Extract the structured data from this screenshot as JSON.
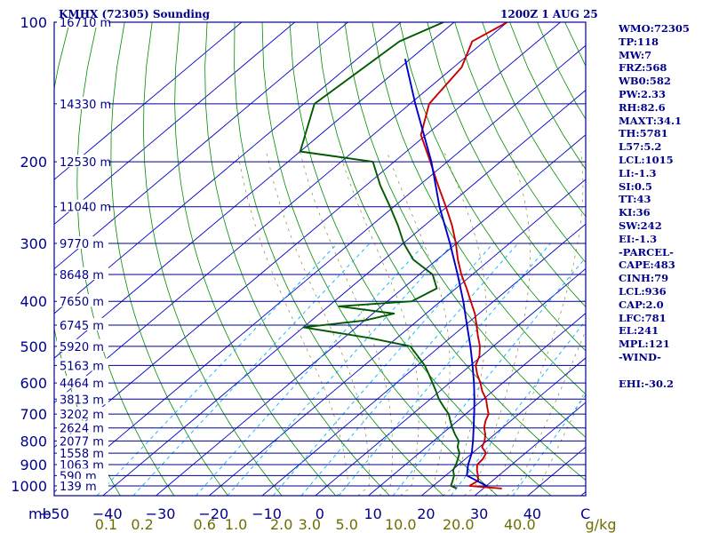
{
  "header": {
    "station": "KMHX (72305) Sounding",
    "valid": "1200Z  1 AUG 25"
  },
  "indices": [
    "WMO:72305",
    "TP:118",
    "MW:7",
    "FRZ:568",
    "WB0:582",
    "PW:2.33",
    "RH:82.6",
    "MAXT:34.1",
    "TH:5781",
    "L57:5.2",
    "LCL:1015",
    "LI:-1.3",
    "SI:0.5",
    "TT:43",
    "KI:36",
    "SW:242",
    "EI:-1.3",
    "-PARCEL-",
    "CAPE:483",
    "CINH:79",
    "LCL:936",
    "CAP:2.0",
    "LFC:781",
    "EL:241",
    "MPL:121",
    "-WIND-",
    "",
    "EHI:-30.2"
  ],
  "colors": {
    "isobar": "#00008b",
    "dry_adiabat": "#008c00",
    "isotherm": "#0000cd",
    "mixing_ratio": "#00b4ff",
    "temperature": "#c80000",
    "dewpoint": "#005a00",
    "parcel": "#0000c8",
    "text": "#00008b",
    "mr_labels": "#6e6e00",
    "moist_adiabat": "#6e6e00"
  },
  "chart_data": {
    "type": "line",
    "title": "KMHX (72305) Sounding",
    "subtitle": "1200Z  1 AUG 25",
    "xlabel": "",
    "ylabel": "mb",
    "y_scale": "log",
    "y_axis": "pressure (mb), decreasing upward",
    "x_axis": "temperature (C), skewed",
    "xlim": [
      -50,
      50
    ],
    "ylim": [
      1050,
      100
    ],
    "pressure_ticks": [
      100,
      200,
      300,
      400,
      500,
      600,
      700,
      800,
      900,
      1000
    ],
    "pressure_tick_labels": [
      "100",
      "200",
      "300",
      "400",
      "500",
      "600",
      "700",
      "800",
      "900",
      "1000"
    ],
    "temperature_ticks": [
      -50,
      -40,
      -30,
      -20,
      -10,
      0,
      10,
      20,
      30,
      40,
      50
    ],
    "temperature_tick_labels": [
      "−50",
      "−40",
      "−30",
      "−20",
      "−10",
      "0",
      "10",
      "20",
      "30",
      "40",
      "C"
    ],
    "mb_label": "mb",
    "mixing_ratio_ticks": [
      0.1,
      0.2,
      0.6,
      1.0,
      2.0,
      3.0,
      5.0,
      10.0,
      20.0,
      40.0
    ],
    "mixing_ratio_tick_labels": [
      "0.1",
      "0.2",
      "0.6",
      "1.0",
      "2.0",
      "3.0",
      "5.0",
      "10.0",
      "20.0",
      "40.0"
    ],
    "mixing_ratio_unit": "g/kg",
    "height_levels": [
      {
        "p": 100,
        "label": "16710 m"
      },
      {
        "p": 150,
        "label": "14330 m"
      },
      {
        "p": 200,
        "label": "12530 m"
      },
      {
        "p": 250,
        "label": "11040 m"
      },
      {
        "p": 300,
        "label": "9770 m"
      },
      {
        "p": 350,
        "label": "8648 m"
      },
      {
        "p": 400,
        "label": "7650 m"
      },
      {
        "p": 450,
        "label": "6745 m"
      },
      {
        "p": 500,
        "label": "5920 m"
      },
      {
        "p": 550,
        "label": "5163 m"
      },
      {
        "p": 600,
        "label": "4464 m"
      },
      {
        "p": 650,
        "label": "3813 m"
      },
      {
        "p": 700,
        "label": "3202 m"
      },
      {
        "p": 750,
        "label": "2624 m"
      },
      {
        "p": 800,
        "label": "2077 m"
      },
      {
        "p": 850,
        "label": "1558 m"
      },
      {
        "p": 900,
        "label": "1063 m"
      },
      {
        "p": 950,
        "label": "590 m"
      },
      {
        "p": 1000,
        "label": "139 m"
      }
    ],
    "series": [
      {
        "key": "temperature",
        "points": [
          [
            1013,
            33.5
          ],
          [
            1000,
            26.8
          ],
          [
            975,
            27.3
          ],
          [
            950,
            26.1
          ],
          [
            925,
            24.7
          ],
          [
            900,
            23.5
          ],
          [
            875,
            23.3
          ],
          [
            850,
            22.6
          ],
          [
            825,
            20.5
          ],
          [
            800,
            19.6
          ],
          [
            775,
            18.3
          ],
          [
            750,
            16.6
          ],
          [
            725,
            15.3
          ],
          [
            700,
            14.3
          ],
          [
            675,
            12.4
          ],
          [
            650,
            10.5
          ],
          [
            625,
            8.0
          ],
          [
            600,
            5.8
          ],
          [
            575,
            3.3
          ],
          [
            550,
            1.0
          ],
          [
            525,
            -0.4
          ],
          [
            500,
            -2.5
          ],
          [
            475,
            -5.2
          ],
          [
            450,
            -7.9
          ],
          [
            425,
            -10.8
          ],
          [
            400,
            -14.3
          ],
          [
            375,
            -18.0
          ],
          [
            350,
            -22.1
          ],
          [
            325,
            -26.1
          ],
          [
            300,
            -30.1
          ],
          [
            275,
            -34.7
          ],
          [
            250,
            -40.2
          ],
          [
            225,
            -46.4
          ],
          [
            200,
            -53.2
          ],
          [
            175,
            -61.0
          ],
          [
            150,
            -66.4
          ],
          [
            125,
            -68.5
          ],
          [
            110,
            -72.3
          ],
          [
            100,
            -70.0
          ]
        ]
      },
      {
        "key": "dewpoint",
        "points": [
          [
            1013,
            25.0
          ],
          [
            1000,
            23.3
          ],
          [
            975,
            22.5
          ],
          [
            950,
            21.6
          ],
          [
            925,
            20.2
          ],
          [
            900,
            19.5
          ],
          [
            875,
            18.6
          ],
          [
            850,
            17.6
          ],
          [
            825,
            15.9
          ],
          [
            800,
            14.7
          ],
          [
            775,
            12.6
          ],
          [
            750,
            10.6
          ],
          [
            725,
            8.7
          ],
          [
            700,
            6.8
          ],
          [
            675,
            4.2
          ],
          [
            650,
            1.6
          ],
          [
            625,
            -0.7
          ],
          [
            600,
            -3.2
          ],
          [
            575,
            -5.8
          ],
          [
            550,
            -8.6
          ],
          [
            525,
            -12.0
          ],
          [
            500,
            -15.6
          ],
          [
            480,
            -25.0
          ],
          [
            455,
            -40.0
          ],
          [
            440,
            -30.0
          ],
          [
            425,
            -26.0
          ],
          [
            410,
            -38.0
          ],
          [
            400,
            -25.4
          ],
          [
            375,
            -23.6
          ],
          [
            350,
            -27.5
          ],
          [
            325,
            -34.5
          ],
          [
            300,
            -39.9
          ],
          [
            275,
            -44.9
          ],
          [
            250,
            -50.7
          ],
          [
            225,
            -57.3
          ],
          [
            200,
            -64.0
          ],
          [
            190,
            -80.0
          ],
          [
            150,
            -88.0
          ],
          [
            110,
            -86.0
          ],
          [
            100,
            -82.0
          ]
        ]
      },
      {
        "key": "parcel",
        "points": [
          [
            1000,
            30.0
          ],
          [
            950,
            24.0
          ],
          [
            900,
            21.8
          ],
          [
            850,
            19.9
          ],
          [
            800,
            17.4
          ],
          [
            750,
            14.6
          ],
          [
            700,
            11.6
          ],
          [
            650,
            8.3
          ],
          [
            600,
            4.6
          ],
          [
            550,
            0.4
          ],
          [
            500,
            -4.3
          ],
          [
            450,
            -9.7
          ],
          [
            400,
            -15.7
          ],
          [
            350,
            -22.8
          ],
          [
            300,
            -31.2
          ],
          [
            250,
            -41.4
          ],
          [
            200,
            -53.0
          ],
          [
            150,
            -69.0
          ],
          [
            120,
            -81.0
          ]
        ]
      }
    ]
  }
}
